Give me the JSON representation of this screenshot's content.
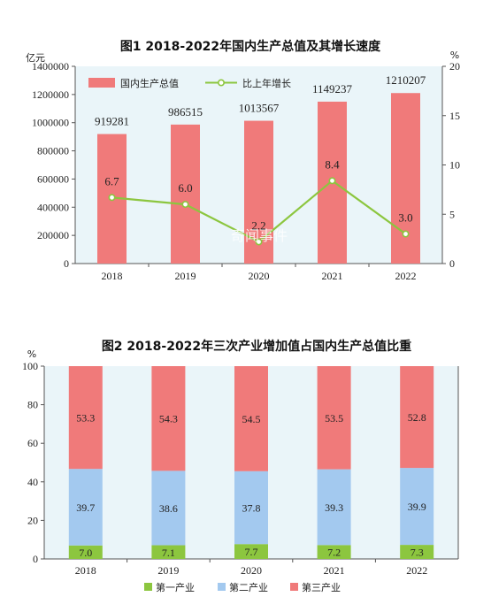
{
  "watermark": "奇闻事件",
  "chart_data": [
    {
      "type": "bar",
      "title": "图1  2018-2022年国内生产总值及其增长速度",
      "ylabel_left": "亿元",
      "ylabel_right": "%",
      "categories": [
        "2018",
        "2019",
        "2020",
        "2021",
        "2022"
      ],
      "ylim_left": [
        0,
        1400000
      ],
      "yticks_left": [
        "0",
        "200000",
        "400000",
        "600000",
        "800000",
        "1000000",
        "1200000",
        "1400000"
      ],
      "ylim_right": [
        0,
        20
      ],
      "yticks_right": [
        "0",
        "5",
        "10",
        "15",
        "20"
      ],
      "series": [
        {
          "name": "国内生产总值",
          "type": "bar",
          "axis": "left",
          "values": [
            919281,
            986515,
            1013567,
            1149237,
            1210207
          ],
          "labels": [
            "919281",
            "986515",
            "1013567",
            "1149237",
            "1210207"
          ],
          "color": "#f07a7a"
        },
        {
          "name": "比上年增长",
          "type": "line",
          "axis": "right",
          "values": [
            6.7,
            6.0,
            2.2,
            8.4,
            3.0
          ],
          "labels": [
            "6.7",
            "6.0",
            "2.2",
            "8.4",
            "3.0"
          ],
          "color": "#8cc63f"
        }
      ],
      "grid": false,
      "legend": "top-left"
    },
    {
      "type": "bar",
      "stacked": true,
      "title": "图2  2018-2022年三次产业增加值占国内生产总值比重",
      "ylabel": "%",
      "categories": [
        "2018",
        "2019",
        "2020",
        "2021",
        "2022"
      ],
      "ylim": [
        0,
        100
      ],
      "yticks": [
        "0",
        "20",
        "40",
        "60",
        "80",
        "100"
      ],
      "series": [
        {
          "name": "第一产业",
          "values": [
            7.0,
            7.1,
            7.7,
            7.2,
            7.3
          ],
          "labels": [
            "7.0",
            "7.1",
            "7.7",
            "7.2",
            "7.3"
          ],
          "color": "#8cc63f"
        },
        {
          "name": "第二产业",
          "values": [
            39.7,
            38.6,
            37.8,
            39.3,
            39.9
          ],
          "labels": [
            "39.7",
            "38.6",
            "37.8",
            "39.3",
            "39.9"
          ],
          "color": "#a3c9ef"
        },
        {
          "name": "第三产业",
          "values": [
            53.3,
            54.3,
            54.5,
            53.5,
            52.8
          ],
          "labels": [
            "53.3",
            "54.3",
            "54.5",
            "53.5",
            "52.8"
          ],
          "color": "#f07a7a"
        }
      ],
      "grid": false,
      "legend": "bottom"
    }
  ],
  "colors": {
    "plot_bg": "#eaf5f9",
    "axis": "#555555"
  }
}
